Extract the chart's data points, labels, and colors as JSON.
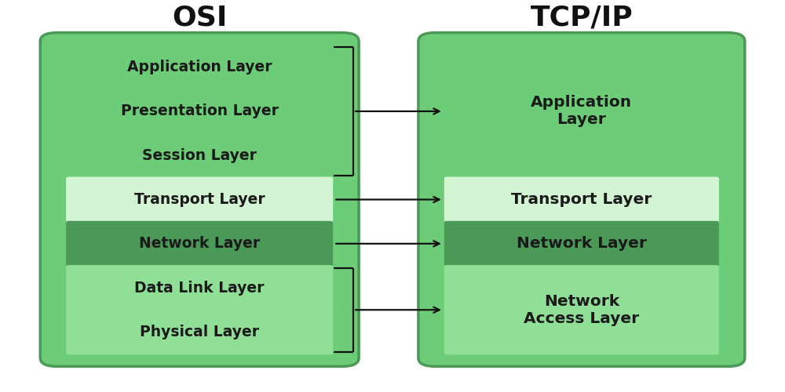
{
  "background_color": "#ffffff",
  "title_osi": "OSI",
  "title_tcp": "TCP/IP",
  "title_fontsize": 26,
  "title_fontweight": "bold",
  "layer_fontsize": 13.5,
  "layer_fontweight": "bold",
  "osi_layers": [
    {
      "label": "Application Layer",
      "color": "#6dcc77"
    },
    {
      "label": "Presentation Layer",
      "color": "#6dcc77"
    },
    {
      "label": "Session Layer",
      "color": "#6dcc77"
    },
    {
      "label": "Transport Layer",
      "color": "#d4f5d4"
    },
    {
      "label": "Network Layer",
      "color": "#4a9957"
    },
    {
      "label": "Data Link Layer",
      "color": "#8fe096"
    },
    {
      "label": "Physical Layer",
      "color": "#8fe096"
    }
  ],
  "tcp_layers": [
    {
      "label": "Application\nLayer",
      "color": "#6dcc77",
      "span": 3
    },
    {
      "label": "Transport Layer",
      "color": "#d4f5d4",
      "span": 1
    },
    {
      "label": "Network Layer",
      "color": "#4a9957",
      "span": 1
    },
    {
      "label": "Network\nAccess Layer",
      "color": "#8fe096",
      "span": 2
    }
  ],
  "osi_box_border": "#4a9957",
  "tcp_box_border": "#4a9957",
  "osi_box_bg": "#6dcc77",
  "tcp_box_bg": "#6dcc77",
  "text_color": "#1a1a1a",
  "arrow_color": "#111111",
  "bracket_color": "#111111",
  "figsize": [
    10.0,
    5.0
  ],
  "dpi": 100
}
